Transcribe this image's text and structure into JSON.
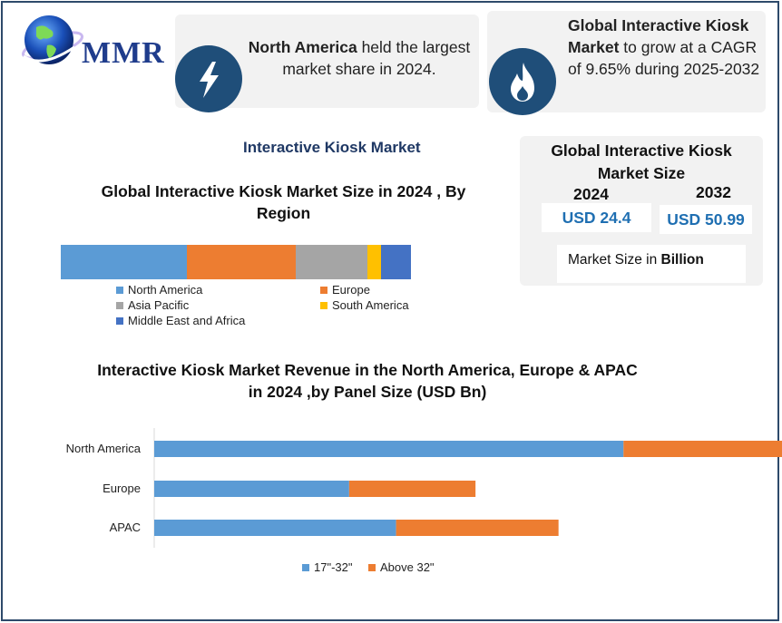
{
  "logo": {
    "text": "MMR",
    "icon": "globe-icon"
  },
  "card1": {
    "icon": "lightning-icon",
    "bold": "North America",
    "rest": " held the largest market share in 2024."
  },
  "card2": {
    "icon": "flame-icon",
    "bold": "Global Interactive Kiosk Market",
    "rest": " to grow at a CAGR of 9.65% during 2025-2032"
  },
  "section_title": "Interactive Kiosk Market",
  "market_size": {
    "title_line1": "Global Interactive Kiosk",
    "title_line2": "Market Size",
    "year1": "2024",
    "year2": "2032",
    "value1": "USD 24.4",
    "value2": "USD 50.99",
    "unit_prefix": "Market Size in ",
    "unit_bold": "Billion"
  },
  "colors": {
    "blue": "#5b9bd5",
    "orange": "#ed7d31",
    "gray": "#a5a5a5",
    "yellow": "#ffc000",
    "darkblue": "#4472c4",
    "navy": "#1f4e79"
  },
  "chart_data": [
    {
      "type": "bar",
      "orientation": "horizontal-stacked-100",
      "title_line1": "Global Interactive Kiosk Market Size in 2024 , By",
      "title_line2": "Region",
      "series": [
        {
          "name": "North America",
          "value": 36,
          "color": "#5b9bd5"
        },
        {
          "name": "Europe",
          "value": 31,
          "color": "#ed7d31"
        },
        {
          "name": "Asia Pacific",
          "value": 20.5,
          "color": "#a5a5a5"
        },
        {
          "name": "South America",
          "value": 4,
          "color": "#ffc000"
        },
        {
          "name": "Middle East and Africa",
          "value": 8.5,
          "color": "#4472c4"
        }
      ],
      "legend": "bottom",
      "grid": false
    },
    {
      "type": "bar",
      "orientation": "horizontal-stacked",
      "title_line1": "Interactive Kiosk Market Revenue in the North America, Europe & APAC",
      "title_line2": "in 2024 ,by Panel Size (USD Bn)",
      "categories": [
        "North America",
        "Europe",
        "APAC"
      ],
      "series": [
        {
          "name": "17\"-32\"",
          "values": [
            6.5,
            2.7,
            3.35
          ],
          "color": "#5b9bd5"
        },
        {
          "name": "Above 32\"",
          "values": [
            3.1,
            1.75,
            2.25
          ],
          "color": "#ed7d31"
        }
      ],
      "xlim": [
        0,
        12
      ],
      "legend": "bottom",
      "grid": false
    }
  ]
}
